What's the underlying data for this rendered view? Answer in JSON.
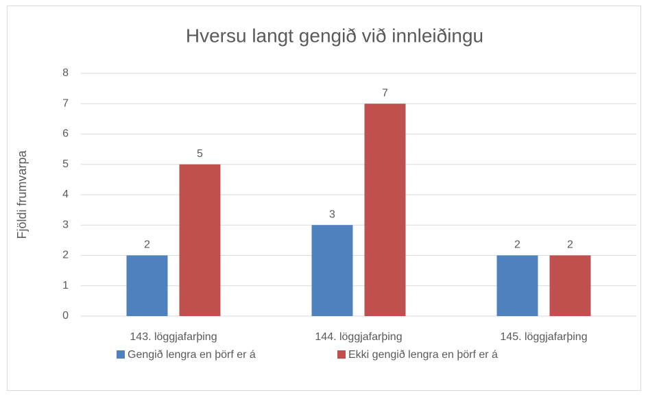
{
  "chart_data": {
    "type": "bar",
    "title": "Hversu langt gengið við innleiðingu",
    "y_label": "Fjöldi frumvarpa",
    "categories": [
      "143. löggjafarþing",
      "144. löggjafarþing",
      "145. löggjafarþing"
    ],
    "series": [
      {
        "name": "Gengið lengra en þörf er á",
        "color": "#4f81bd",
        "values": [
          2,
          3,
          2
        ]
      },
      {
        "name": "Ekki gengið lengra en þörf er á",
        "color": "#c0504d",
        "values": [
          5,
          7,
          2
        ]
      }
    ],
    "ylim": [
      0,
      8
    ],
    "yticks": [
      0,
      1,
      2,
      3,
      4,
      5,
      6,
      7,
      8
    ],
    "grid": true,
    "legend": "bottom"
  }
}
